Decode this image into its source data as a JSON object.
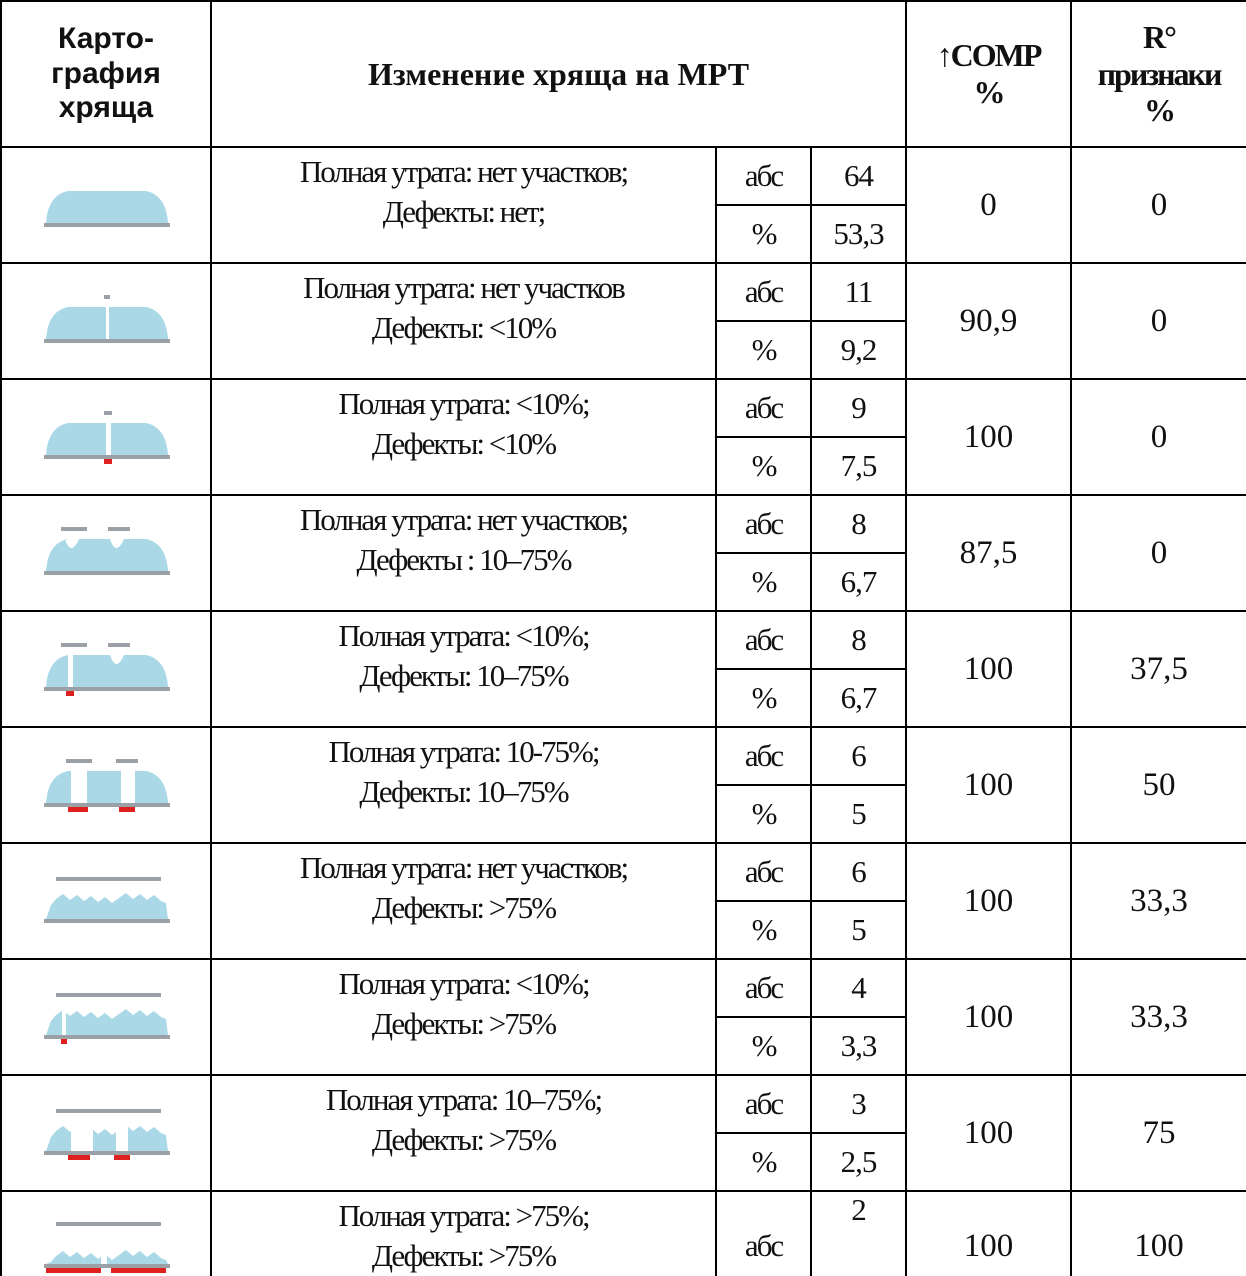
{
  "header": [
    "Карто-\nграфия\nхряща",
    "Изменение хряща на МРТ",
    "↑COMP\n%",
    "R°\nпризнаки\n%"
  ],
  "rows": [
    {
      "description": [
        "Полная утрата: нет участков;",
        "Дефекты: нет;"
      ],
      "abs_label": "абс",
      "abs": "64",
      "pct_label": "%",
      "pct": "53,3",
      "comp": "0",
      "r": "0"
    },
    {
      "description": [
        "Полная утрата: нет участков",
        "Дефекты: <10%"
      ],
      "abs_label": "абс",
      "abs": "11",
      "pct_label": "%",
      "pct": "9,2",
      "comp": "90,9",
      "r": "0"
    },
    {
      "description": [
        "Полная утрата: <10%;",
        "Дефекты: <10%"
      ],
      "abs_label": "абс",
      "abs": "9",
      "pct_label": "%",
      "pct": "7,5",
      "comp": "100",
      "r": "0"
    },
    {
      "description": [
        "Полная утрата: нет участков;",
        "Дефекты : 10–75%"
      ],
      "abs_label": "абс",
      "abs": "8",
      "pct_label": "%",
      "pct": "6,7",
      "comp": "87,5",
      "r": "0"
    },
    {
      "description": [
        "Полная утрата: <10%;",
        "Дефекты: 10–75%"
      ],
      "abs_label": "абс",
      "abs": "8",
      "pct_label": "%",
      "pct": "6,7",
      "comp": "100",
      "r": "37,5"
    },
    {
      "description": [
        "Полная утрата: 10-75%;",
        "Дефекты: 10–75%"
      ],
      "abs_label": "абс",
      "abs": "6",
      "pct_label": "%",
      "pct": "5",
      "comp": "100",
      "r": "50"
    },
    {
      "description": [
        "Полная утрата: нет участков;",
        "Дефекты: >75%"
      ],
      "abs_label": "абс",
      "abs": "6",
      "pct_label": "%",
      "pct": "5",
      "comp": "100",
      "r": "33,3"
    },
    {
      "description": [
        "Полная утрата: <10%;",
        "Дефекты: >75%"
      ],
      "abs_label": "абс",
      "abs": "4",
      "pct_label": "%",
      "pct": "3,3",
      "comp": "100",
      "r": "33,3"
    },
    {
      "description": [
        "Полная утрата: 10–75%;",
        "Дефекты: >75%"
      ],
      "abs_label": "абс",
      "abs": "3",
      "pct_label": "%",
      "pct": "2,5",
      "comp": "100",
      "r": "75"
    },
    {
      "description": [
        "Полная утрата: >75%;",
        "Дефекты: >75%"
      ],
      "abs_label": "абс",
      "abs": "2",
      "comp": "100",
      "r": "100"
    }
  ]
}
